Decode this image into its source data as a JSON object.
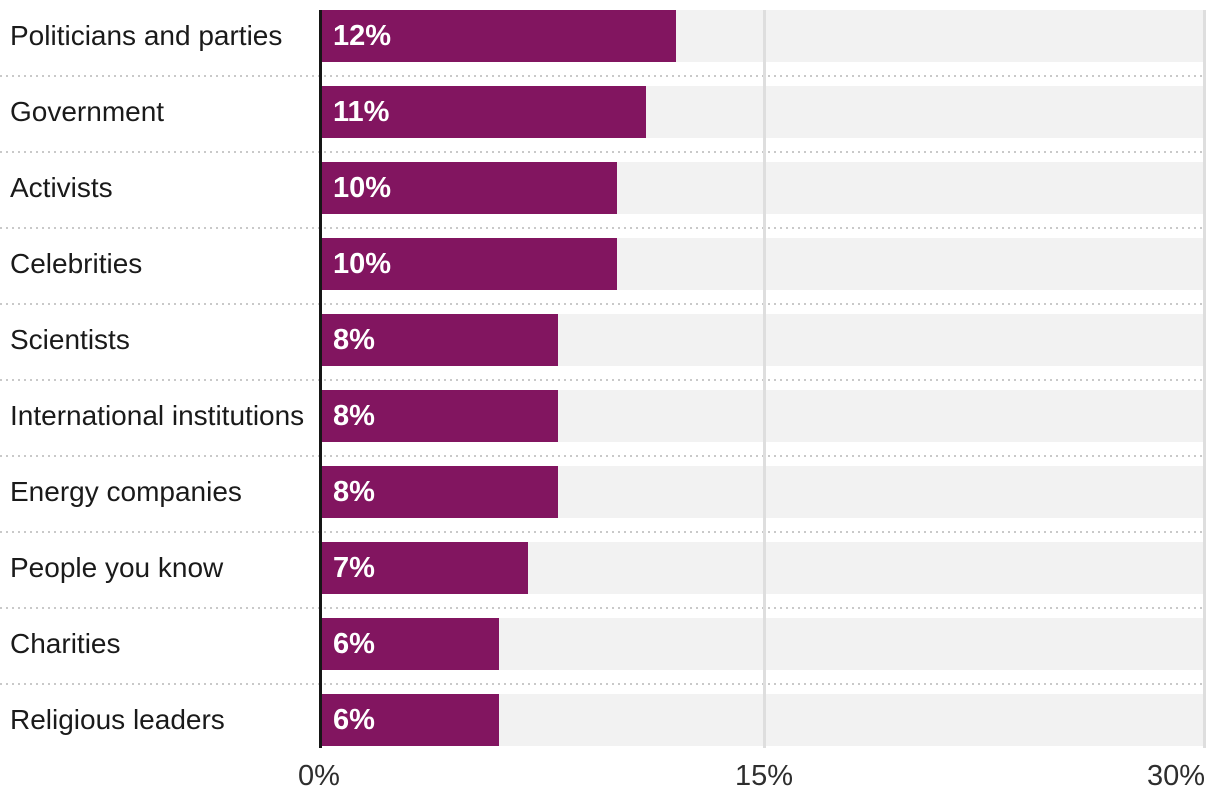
{
  "chart_data": {
    "type": "bar",
    "orientation": "horizontal",
    "title": "",
    "xlabel": "",
    "ylabel": "",
    "categories": [
      "Politicians and parties",
      "Government",
      "Activists",
      "Celebrities",
      "Scientists",
      "International institutions",
      "Energy companies",
      "People you know",
      "Charities",
      "Religious leaders"
    ],
    "values": [
      12,
      11,
      10,
      10,
      8,
      8,
      8,
      7,
      6,
      6
    ],
    "value_labels": [
      "12%",
      "11%",
      "10%",
      "10%",
      "8%",
      "8%",
      "8%",
      "7%",
      "6%",
      "6%"
    ],
    "xlim": [
      0,
      30
    ],
    "x_ticks": [
      {
        "value": 0,
        "label": "0%"
      },
      {
        "value": 15,
        "label": "15%"
      },
      {
        "value": 30,
        "label": "30%"
      }
    ],
    "grid": "vertical-gridlines-at-ticks",
    "legend": "none",
    "colors": {
      "bar": "#821560",
      "track": "#f2f2f2",
      "gridline": "#dedede",
      "axis_line": "#161616",
      "separator_dots": "#c9c9c9",
      "category_text": "#1a1a1a",
      "tick_text": "#2e2e2e",
      "value_text": "#ffffff"
    }
  }
}
